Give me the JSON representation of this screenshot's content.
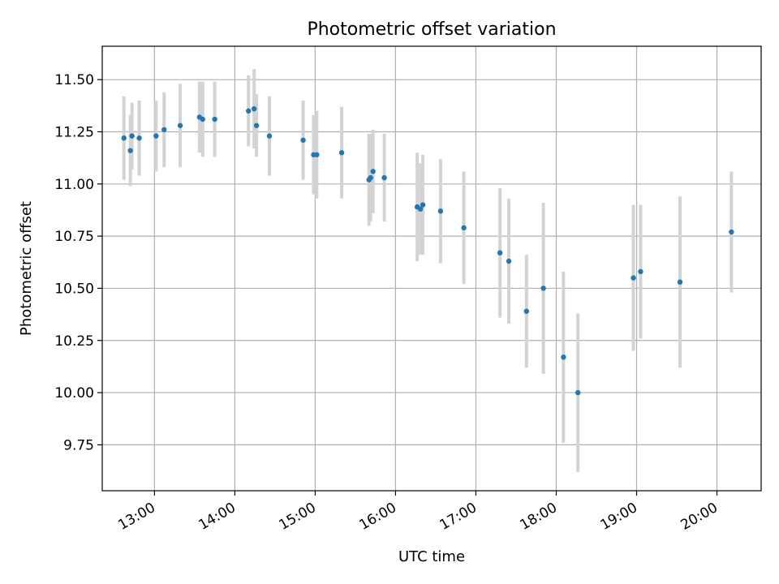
{
  "chart_data": {
    "type": "scatter",
    "title": "Photometric offset variation",
    "xlabel": "UTC time",
    "ylabel": "Photometric offset",
    "xlim": [
      12.35,
      20.55
    ],
    "ylim": [
      9.53,
      11.66
    ],
    "xticks": [
      {
        "label": "13:00",
        "value": 13
      },
      {
        "label": "14:00",
        "value": 14
      },
      {
        "label": "15:00",
        "value": 15
      },
      {
        "label": "16:00",
        "value": 16
      },
      {
        "label": "17:00",
        "value": 17
      },
      {
        "label": "18:00",
        "value": 18
      },
      {
        "label": "19:00",
        "value": 19
      },
      {
        "label": "20:00",
        "value": 20
      }
    ],
    "yticks": [
      {
        "label": "9.75",
        "value": 9.75
      },
      {
        "label": "10.00",
        "value": 10.0
      },
      {
        "label": "10.25",
        "value": 10.25
      },
      {
        "label": "10.50",
        "value": 10.5
      },
      {
        "label": "10.75",
        "value": 10.75
      },
      {
        "label": "11.00",
        "value": 11.0
      },
      {
        "label": "11.25",
        "value": 11.25
      },
      {
        "label": "11.50",
        "value": 11.5
      }
    ],
    "grid": true,
    "marker_color": "#1f77b4",
    "errorbar_color": "#d3d3d3",
    "points": [
      {
        "x": 12.62,
        "y": 11.22,
        "err": 0.2
      },
      {
        "x": 12.7,
        "y": 11.16,
        "err": 0.17
      },
      {
        "x": 12.72,
        "y": 11.23,
        "err": 0.16
      },
      {
        "x": 12.81,
        "y": 11.22,
        "err": 0.18
      },
      {
        "x": 13.02,
        "y": 11.23,
        "err": 0.17
      },
      {
        "x": 13.12,
        "y": 11.26,
        "err": 0.18
      },
      {
        "x": 13.32,
        "y": 11.28,
        "err": 0.2
      },
      {
        "x": 13.56,
        "y": 11.32,
        "err": 0.17
      },
      {
        "x": 13.6,
        "y": 11.31,
        "err": 0.18
      },
      {
        "x": 13.75,
        "y": 11.31,
        "err": 0.18
      },
      {
        "x": 14.17,
        "y": 11.35,
        "err": 0.17
      },
      {
        "x": 14.24,
        "y": 11.36,
        "err": 0.19
      },
      {
        "x": 14.27,
        "y": 11.28,
        "err": 0.15
      },
      {
        "x": 14.43,
        "y": 11.23,
        "err": 0.19
      },
      {
        "x": 14.85,
        "y": 11.21,
        "err": 0.19
      },
      {
        "x": 14.98,
        "y": 11.14,
        "err": 0.19
      },
      {
        "x": 15.02,
        "y": 11.14,
        "err": 0.21
      },
      {
        "x": 15.33,
        "y": 11.15,
        "err": 0.22
      },
      {
        "x": 15.67,
        "y": 11.02,
        "err": 0.22
      },
      {
        "x": 15.69,
        "y": 11.03,
        "err": 0.21
      },
      {
        "x": 15.72,
        "y": 11.06,
        "err": 0.2
      },
      {
        "x": 15.86,
        "y": 11.03,
        "err": 0.21
      },
      {
        "x": 16.27,
        "y": 10.89,
        "err": 0.26
      },
      {
        "x": 16.31,
        "y": 10.88,
        "err": 0.22
      },
      {
        "x": 16.34,
        "y": 10.9,
        "err": 0.24
      },
      {
        "x": 16.56,
        "y": 10.87,
        "err": 0.25
      },
      {
        "x": 16.85,
        "y": 10.79,
        "err": 0.27
      },
      {
        "x": 17.3,
        "y": 10.67,
        "err": 0.31
      },
      {
        "x": 17.41,
        "y": 10.63,
        "err": 0.3
      },
      {
        "x": 17.63,
        "y": 10.39,
        "err": 0.27
      },
      {
        "x": 17.84,
        "y": 10.5,
        "err": 0.41
      },
      {
        "x": 18.09,
        "y": 10.17,
        "err": 0.41
      },
      {
        "x": 18.27,
        "y": 10.0,
        "err": 0.38
      },
      {
        "x": 18.96,
        "y": 10.55,
        "err": 0.35
      },
      {
        "x": 19.05,
        "y": 10.58,
        "err": 0.32
      },
      {
        "x": 19.54,
        "y": 10.53,
        "err": 0.41
      },
      {
        "x": 20.18,
        "y": 10.77,
        "err": 0.29
      }
    ]
  }
}
